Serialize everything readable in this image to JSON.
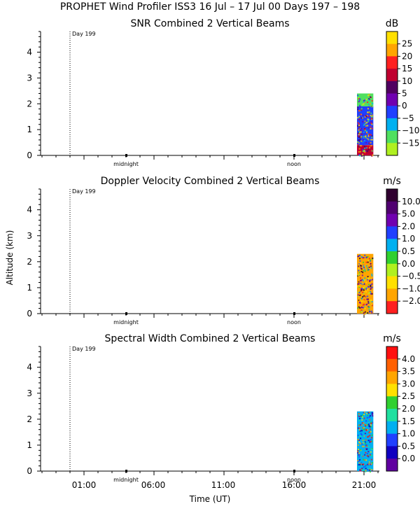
{
  "header": {
    "title": "PROPHET Wind Profiler ISS3  16 Jul – 17 Jul 00 Days 197 – 198"
  },
  "figure": {
    "ylabel": "Altitude (km)",
    "xlabel": "Time (UT)",
    "x_tick_labels": [
      "01:00",
      "06:00",
      "11:00",
      "16:00",
      "21:00"
    ],
    "inner_labels": [
      "midnight",
      "noon"
    ],
    "day_marker_label": "Day 199"
  },
  "chart_data": [
    {
      "type": "heatmap",
      "title": "SNR Combined 2 Vertical Beams",
      "unit": "dB",
      "ylim": [
        0,
        4.8
      ],
      "y_ticks": [
        0,
        1,
        2,
        3,
        4
      ],
      "colorbar": {
        "labels": [
          "25",
          "20",
          "15",
          "10",
          "5",
          "0",
          "−5",
          "−10",
          "−15"
        ],
        "colors": [
          "#ffe000",
          "#ffa500",
          "#ff2020",
          "#c00030",
          "#500060",
          "#7000b0",
          "#2040ff",
          "#00b0f0",
          "#50e060",
          "#b0f020"
        ]
      },
      "data_region": {
        "time_start": "21:00",
        "time_end": "21:40",
        "layers": [
          {
            "from_km": 0.0,
            "to_km": 0.4,
            "color": "#c00030"
          },
          {
            "from_km": 0.4,
            "to_km": 1.9,
            "color": "#2040ff"
          },
          {
            "from_km": 1.9,
            "to_km": 2.4,
            "color": "#50e060"
          }
        ]
      }
    },
    {
      "type": "heatmap",
      "title": "Doppler Velocity Combined 2 Vertical Beams",
      "unit": "m/s",
      "ylim": [
        0,
        4.8
      ],
      "y_ticks": [
        0,
        1,
        2,
        3,
        4
      ],
      "colorbar": {
        "labels": [
          "10.0",
          "5.0",
          "2.0",
          "1.0",
          "0.5",
          "0.0",
          "−0.5",
          "−1.0",
          "−2.0"
        ],
        "colors": [
          "#300030",
          "#500070",
          "#7000b0",
          "#2040ff",
          "#00b0f0",
          "#30d030",
          "#b0f020",
          "#ffe000",
          "#ffa500",
          "#ff2020"
        ]
      },
      "data_region": {
        "time_start": "21:00",
        "time_end": "21:40",
        "layers": [
          {
            "from_km": 0.0,
            "to_km": 2.3,
            "color": "#ffa500"
          }
        ]
      }
    },
    {
      "type": "heatmap",
      "title": "Spectral Width Combined 2 Vertical Beams",
      "unit": "m/s",
      "ylim": [
        0,
        4.8
      ],
      "y_ticks": [
        0,
        1,
        2,
        3,
        4
      ],
      "colorbar": {
        "labels": [
          "4.0",
          "3.5",
          "3.0",
          "2.5",
          "2.0",
          "1.5",
          "1.0",
          "0.5",
          "0.0"
        ],
        "colors": [
          "#ff1010",
          "#ff6000",
          "#ffa500",
          "#ffe000",
          "#30d030",
          "#20e0a0",
          "#00b0f0",
          "#2040ff",
          "#1000c0",
          "#6000a0"
        ]
      },
      "data_region": {
        "time_start": "21:00",
        "time_end": "21:40",
        "layers": [
          {
            "from_km": 0.0,
            "to_km": 2.3,
            "color": "#00b0f0"
          }
        ]
      }
    }
  ]
}
